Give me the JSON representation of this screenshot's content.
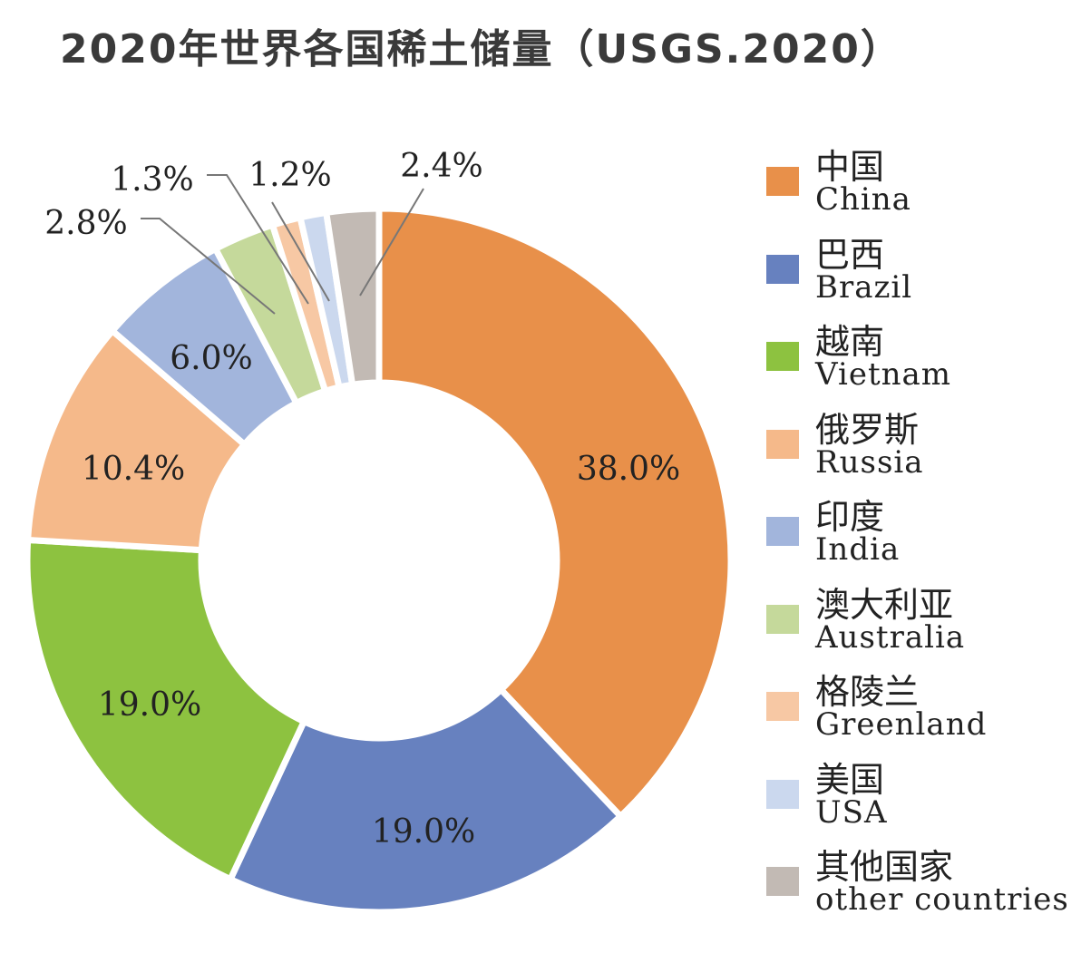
{
  "chart_data": {
    "type": "pie",
    "donut": true,
    "title": "2020年世界各国稀土储量（USGS.2020）",
    "categories": [
      "China",
      "Brazil",
      "Vietnam",
      "Russia",
      "India",
      "Australia",
      "Greenland",
      "USA",
      "other countries"
    ],
    "categories_zh": [
      "中国",
      "巴西",
      "越南",
      "俄罗斯",
      "印度",
      "澳大利亚",
      "格陵兰",
      "美国",
      "其他国家"
    ],
    "values": [
      38.0,
      19.0,
      19.0,
      10.4,
      6.0,
      2.8,
      1.3,
      1.2,
      2.4
    ],
    "labels": [
      "38.0%",
      "19.0%",
      "19.0%",
      "10.4%",
      "6.0%",
      "2.8%",
      "1.3%",
      "1.2%",
      "2.4%"
    ],
    "colors": [
      "#E8904A",
      "#6781BF",
      "#8DC240",
      "#F5B98A",
      "#A2B5DC",
      "#C5D99B",
      "#F7C8A4",
      "#CBD8EE",
      "#C2BAB4"
    ],
    "legend_position": "right"
  }
}
